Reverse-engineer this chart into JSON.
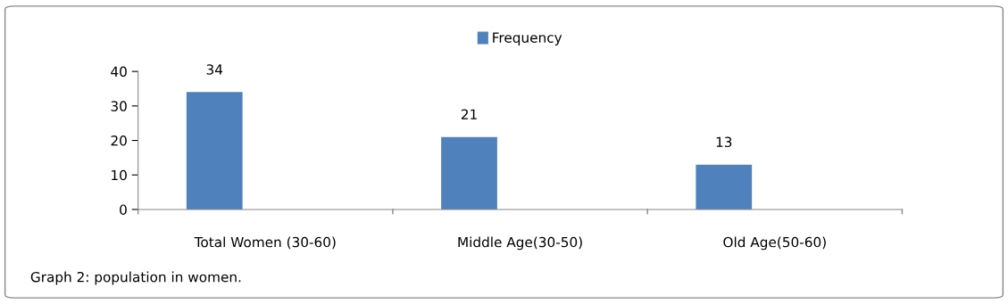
{
  "chart_data": {
    "type": "bar",
    "categories": [
      "Total Women (30-60)",
      "Middle Age(30-50)",
      "Old Age(50-60)"
    ],
    "series": [
      {
        "name": "Frequency",
        "color": "#4f81bd",
        "values": [
          34,
          21,
          13
        ]
      }
    ],
    "ylim": [
      0,
      40
    ],
    "yticks": [
      0,
      10,
      20,
      30,
      40
    ],
    "grid": false,
    "legend": "top",
    "data_labels": true,
    "annotations": [
      "Graph 2: population in women."
    ]
  }
}
